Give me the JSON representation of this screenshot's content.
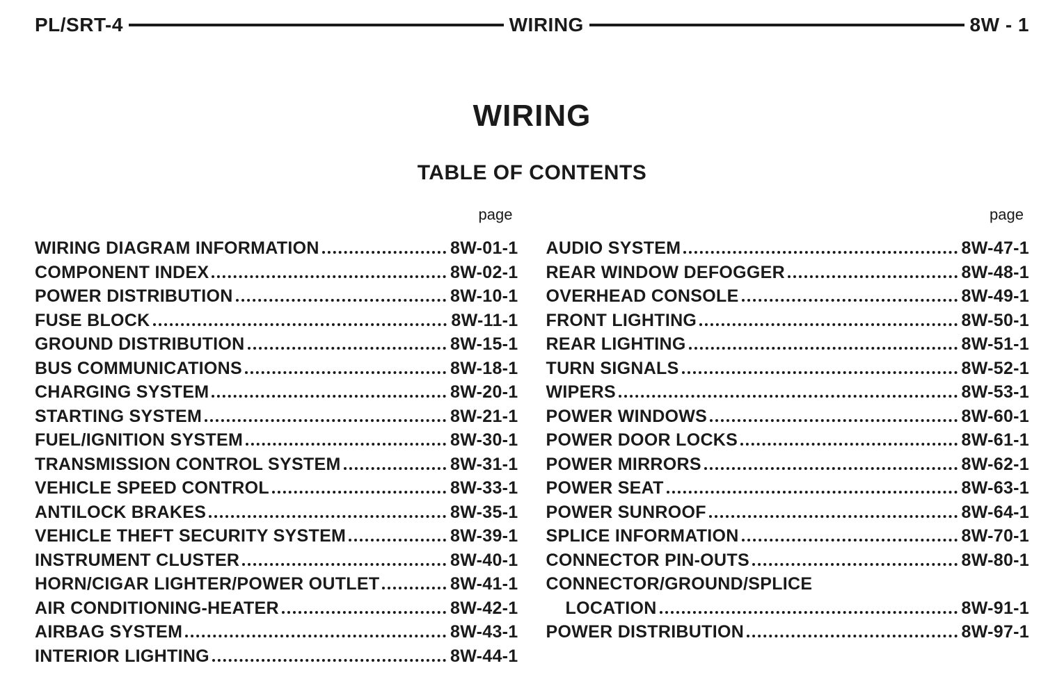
{
  "header": {
    "left": "PL/SRT-4",
    "center": "WIRING",
    "right": "8W - 1"
  },
  "titles": {
    "main": "WIRING",
    "sub": "TABLE OF CONTENTS",
    "page_label": "page"
  },
  "toc": {
    "left": [
      {
        "label": "WIRING DIAGRAM INFORMATION",
        "page": "8W-01-1"
      },
      {
        "label": "COMPONENT INDEX",
        "page": "8W-02-1"
      },
      {
        "label": "POWER DISTRIBUTION",
        "page": "8W-10-1"
      },
      {
        "label": "FUSE BLOCK",
        "page": "8W-11-1"
      },
      {
        "label": "GROUND DISTRIBUTION",
        "page": "8W-15-1"
      },
      {
        "label": "BUS COMMUNICATIONS",
        "page": "8W-18-1"
      },
      {
        "label": "CHARGING SYSTEM",
        "page": "8W-20-1"
      },
      {
        "label": "STARTING SYSTEM",
        "page": "8W-21-1"
      },
      {
        "label": "FUEL/IGNITION SYSTEM",
        "page": "8W-30-1"
      },
      {
        "label": "TRANSMISSION CONTROL SYSTEM",
        "page": "8W-31-1"
      },
      {
        "label": "VEHICLE SPEED CONTROL",
        "page": "8W-33-1"
      },
      {
        "label": "ANTILOCK BRAKES",
        "page": "8W-35-1"
      },
      {
        "label": "VEHICLE THEFT SECURITY SYSTEM",
        "page": "8W-39-1"
      },
      {
        "label": "INSTRUMENT CLUSTER",
        "page": "8W-40-1"
      },
      {
        "label": "HORN/CIGAR LIGHTER/POWER OUTLET",
        "page": "8W-41-1"
      },
      {
        "label": "AIR CONDITIONING-HEATER",
        "page": "8W-42-1"
      },
      {
        "label": "AIRBAG SYSTEM",
        "page": "8W-43-1"
      },
      {
        "label": "INTERIOR LIGHTING",
        "page": "8W-44-1"
      }
    ],
    "right": [
      {
        "label": "AUDIO SYSTEM",
        "page": "8W-47-1"
      },
      {
        "label": "REAR WINDOW DEFOGGER",
        "page": "8W-48-1"
      },
      {
        "label": "OVERHEAD CONSOLE",
        "page": "8W-49-1"
      },
      {
        "label": "FRONT LIGHTING",
        "page": "8W-50-1"
      },
      {
        "label": "REAR LIGHTING",
        "page": "8W-51-1"
      },
      {
        "label": "TURN SIGNALS",
        "page": "8W-52-1"
      },
      {
        "label": "WIPERS",
        "page": "8W-53-1"
      },
      {
        "label": "POWER WINDOWS",
        "page": "8W-60-1"
      },
      {
        "label": "POWER DOOR LOCKS",
        "page": "8W-61-1"
      },
      {
        "label": "POWER MIRRORS",
        "page": "8W-62-1"
      },
      {
        "label": "POWER SEAT",
        "page": "8W-63-1"
      },
      {
        "label": "POWER SUNROOF",
        "page": "8W-64-1"
      },
      {
        "label": "SPLICE INFORMATION",
        "page": "8W-70-1"
      },
      {
        "label": "CONNECTOR PIN-OUTS",
        "page": "8W-80-1"
      },
      {
        "label": "CONNECTOR/GROUND/SPLICE",
        "page": ""
      },
      {
        "label": "LOCATION",
        "page": "8W-91-1",
        "indent": true
      },
      {
        "label": "POWER DISTRIBUTION",
        "page": "8W-97-1"
      }
    ]
  }
}
